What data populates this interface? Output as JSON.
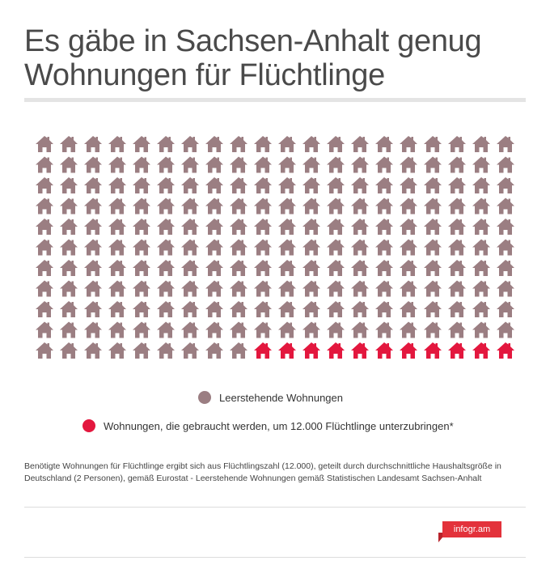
{
  "title": "Es gäbe in Sachsen-Anhalt genug Wohnungen für Flüchtlinge",
  "legend": {
    "vacant": "Leerstehende Wohnungen",
    "needed": "Wohnungen, die gebraucht werden, um 12.000 Flüchtlinge unterzubringen*"
  },
  "footnote": "Benötigte Wohnungen für Flüchtlinge ergibt sich aus Flüchtlingszahl (12.000), geteilt durch durchschnittliche Haushaltsgröße in Deutschland (2 Personen), gemäß Eurostat - Leerstehende Wohnungen gemäß Statistischen Landesamt Sachsen-Anhalt",
  "brand": "infogr.am",
  "icons": {
    "unit": "house-icon",
    "legend_marker": "circle"
  },
  "colors": {
    "vacant": "#9b7e82",
    "needed": "#e3173e",
    "title": "#4a4a4a",
    "brand": "#e3323b"
  },
  "chart_data": {
    "type": "pictogram",
    "icon": "house-icon",
    "rows": 11,
    "columns": 20,
    "series": [
      {
        "name": "Leerstehende Wohnungen",
        "icons": 209,
        "color": "#9b7e82"
      },
      {
        "name": "Wohnungen, die gebraucht werden, um 12.000 Flüchtlinge unterzubringen*",
        "icons": 11,
        "color": "#e3173e"
      }
    ]
  }
}
